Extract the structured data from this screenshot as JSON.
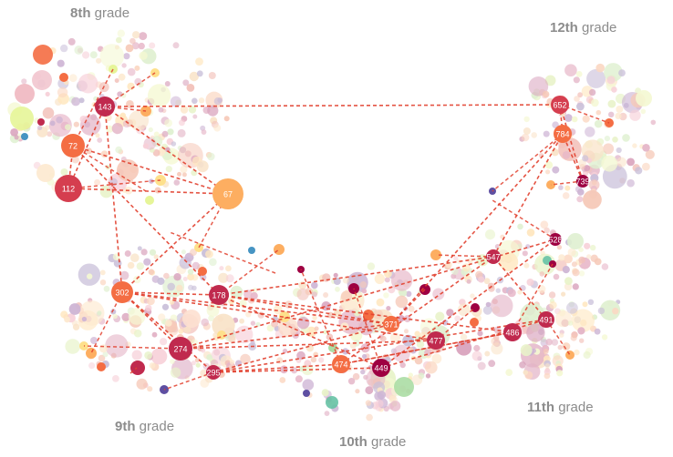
{
  "diagram": {
    "type": "grade-cluster-network",
    "edge_color": "#e2412f",
    "palette": {
      "1": "#9e0142",
      "2": "#c02a4e",
      "3": "#d53e4f",
      "4": "#f46d43",
      "5": "#fdae61",
      "6": "#fee08b",
      "7": "#e6f598",
      "8": "#abdda4",
      "9": "#66c2a5",
      "10": "#3288bd",
      "11": "#5e4fa2"
    },
    "grades": [
      {
        "id": "g8",
        "num": "8th",
        "word": "grade"
      },
      {
        "id": "g9",
        "num": "9th",
        "word": "grade"
      },
      {
        "id": "g10",
        "num": "10th",
        "word": "grade"
      },
      {
        "id": "g11",
        "num": "11th",
        "word": "grade"
      },
      {
        "id": "g12",
        "num": "12th",
        "word": "grade"
      }
    ],
    "labeled_nodes": [
      {
        "id": "143",
        "grade": "g8",
        "color": 2
      },
      {
        "id": "72",
        "grade": "g8",
        "color": 4
      },
      {
        "id": "112",
        "grade": "g8",
        "color": 3
      },
      {
        "id": "67",
        "grade": "g8",
        "color": 5
      },
      {
        "id": "302",
        "grade": "g9",
        "color": 4
      },
      {
        "id": "178",
        "grade": "g9",
        "color": 2
      },
      {
        "id": "274",
        "grade": "g9",
        "color": 2
      },
      {
        "id": "295",
        "grade": "g9",
        "color": 2
      },
      {
        "id": "371",
        "grade": "g10",
        "color": 4
      },
      {
        "id": "477",
        "grade": "g10",
        "color": 2
      },
      {
        "id": "474",
        "grade": "g10",
        "color": 4
      },
      {
        "id": "449",
        "grade": "g10",
        "color": 1
      },
      {
        "id": "528",
        "grade": "g11",
        "color": 1
      },
      {
        "id": "547",
        "grade": "g11",
        "color": 2
      },
      {
        "id": "491",
        "grade": "g11",
        "color": 2
      },
      {
        "id": "486",
        "grade": "g11",
        "color": 2
      },
      {
        "id": "652",
        "grade": "g12",
        "color": 3
      },
      {
        "id": "784",
        "grade": "g12",
        "color": 4
      },
      {
        "id": "739",
        "grade": "g12",
        "color": 1
      }
    ],
    "links": [
      [
        "143",
        "652"
      ],
      [
        "112",
        "67"
      ],
      [
        "72",
        "67"
      ],
      [
        "143",
        "67"
      ],
      [
        "112",
        "143"
      ],
      [
        "72",
        "112"
      ],
      [
        "143",
        "302"
      ],
      [
        "72",
        "178"
      ],
      [
        "302",
        "371"
      ],
      [
        "178",
        "371"
      ],
      [
        "178",
        "547"
      ],
      [
        "302",
        "477"
      ],
      [
        "274",
        "371"
      ],
      [
        "274",
        "528"
      ],
      [
        "295",
        "474"
      ],
      [
        "295",
        "491"
      ],
      [
        "302",
        "274"
      ],
      [
        "178",
        "449"
      ],
      [
        "371",
        "784"
      ],
      [
        "474",
        "547"
      ],
      [
        "449",
        "528"
      ],
      [
        "486",
        "474"
      ],
      [
        "491",
        "547"
      ],
      [
        "295",
        "449"
      ],
      [
        "274",
        "477"
      ],
      [
        "302",
        "295"
      ],
      [
        "652",
        "784"
      ],
      [
        "739",
        "784"
      ],
      [
        "739",
        "652"
      ],
      [
        "547",
        "784"
      ],
      [
        "178",
        "486"
      ],
      [
        "449",
        "491"
      ],
      [
        "302",
        "178"
      ],
      [
        "474",
        "486"
      ],
      [
        "295",
        "371"
      ],
      [
        "67",
        "302"
      ]
    ]
  }
}
